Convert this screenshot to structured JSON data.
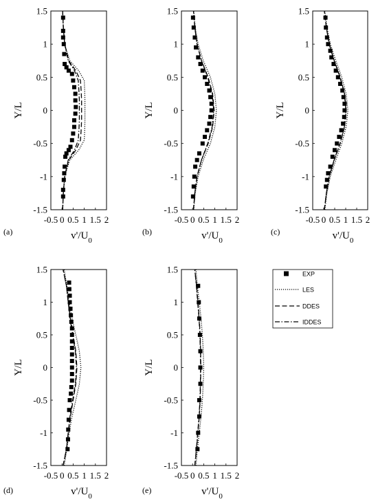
{
  "legend": {
    "entries": [
      {
        "label": "EXP",
        "style": "marker"
      },
      {
        "label": "LES",
        "style": "dotted"
      },
      {
        "label": "DDES",
        "style": "dashed"
      },
      {
        "label": "IDDES",
        "style": "dashdot"
      }
    ]
  },
  "chart_data": [
    {
      "type": "line",
      "panel_label": "(a)",
      "xlabel": "v'/U",
      "xlabel_sub": "0",
      "ylabel": "Y/L",
      "xlim": [
        -0.5,
        2
      ],
      "ylim": [
        -1.5,
        1.5
      ],
      "xticks": [
        "-0.5",
        "0",
        "0.5",
        "1",
        "1.5",
        "2"
      ],
      "yticks": [
        "1.5",
        "1",
        "0.5",
        "0",
        "-0.5",
        "-1",
        "-1.5"
      ],
      "y": [
        -1.5,
        -1.25,
        -1,
        -0.75,
        -0.6,
        -0.45,
        -0.3,
        -0.15,
        0,
        0.15,
        0.3,
        0.45,
        0.6,
        0.75,
        1,
        1.25,
        1.5
      ],
      "series": [
        {
          "name": "LES",
          "style": "dotted",
          "x": [
            0.03,
            0.06,
            0.12,
            0.35,
            0.75,
            1.0,
            1.02,
            1.03,
            1.03,
            1.03,
            1.02,
            1.0,
            0.75,
            0.35,
            0.12,
            0.06,
            0.03
          ]
        },
        {
          "name": "DDES",
          "style": "dashed",
          "x": [
            0.03,
            0.06,
            0.12,
            0.3,
            0.62,
            0.83,
            0.86,
            0.88,
            0.88,
            0.88,
            0.86,
            0.83,
            0.62,
            0.3,
            0.12,
            0.06,
            0.03
          ]
        },
        {
          "name": "IDDES",
          "style": "dashdot",
          "x": [
            0.03,
            0.06,
            0.12,
            0.28,
            0.56,
            0.73,
            0.76,
            0.78,
            0.78,
            0.78,
            0.76,
            0.73,
            0.56,
            0.28,
            0.12,
            0.06,
            0.03
          ]
        },
        {
          "name": "EXP",
          "style": "marker",
          "points": [
            [
              0.05,
              -1.3
            ],
            [
              0.05,
              -1.2
            ],
            [
              0.08,
              -1.05
            ],
            [
              0.1,
              -0.95
            ],
            [
              0.12,
              -0.85
            ],
            [
              0.15,
              -0.7
            ],
            [
              0.2,
              -0.65
            ],
            [
              0.3,
              -0.6
            ],
            [
              0.38,
              -0.55
            ],
            [
              0.45,
              -0.45
            ],
            [
              0.5,
              -0.35
            ],
            [
              0.55,
              -0.25
            ],
            [
              0.55,
              -0.15
            ],
            [
              0.6,
              -0.05
            ],
            [
              0.62,
              0.05
            ],
            [
              0.6,
              0.15
            ],
            [
              0.6,
              0.25
            ],
            [
              0.55,
              0.35
            ],
            [
              0.5,
              0.45
            ],
            [
              0.45,
              0.55
            ],
            [
              0.3,
              0.6
            ],
            [
              0.2,
              0.65
            ],
            [
              0.12,
              0.7
            ],
            [
              0.1,
              0.85
            ],
            [
              0.08,
              1.0
            ],
            [
              0.05,
              1.1
            ],
            [
              0.05,
              1.2
            ],
            [
              0.05,
              1.4
            ]
          ]
        }
      ]
    },
    {
      "type": "line",
      "panel_label": "(b)",
      "xlabel": "v'/U",
      "xlabel_sub": "0",
      "ylabel": "Y/L",
      "xlim": [
        -0.5,
        2
      ],
      "ylim": [
        -1.5,
        1.5
      ],
      "xticks": [
        "-0.5",
        "0",
        "0.5",
        "1",
        "1.5",
        "2"
      ],
      "yticks": [
        "1.5",
        "1",
        "0.5",
        "0",
        "-0.5",
        "-1",
        "-1.5"
      ],
      "y": [
        -1.5,
        -1.25,
        -1,
        -0.75,
        -0.5,
        -0.25,
        0,
        0.25,
        0.5,
        0.75,
        1,
        1.25,
        1.5
      ],
      "series": [
        {
          "name": "LES",
          "style": "dotted",
          "x": [
            0.05,
            0.12,
            0.25,
            0.48,
            0.8,
            1.0,
            1.07,
            1.0,
            0.8,
            0.48,
            0.25,
            0.12,
            0.05
          ]
        },
        {
          "name": "DDES",
          "style": "dashed",
          "x": [
            0.04,
            0.1,
            0.2,
            0.4,
            0.7,
            0.9,
            0.97,
            0.9,
            0.7,
            0.4,
            0.2,
            0.1,
            0.04
          ]
        },
        {
          "name": "IDDES",
          "style": "dashdot",
          "x": [
            0.04,
            0.1,
            0.2,
            0.4,
            0.68,
            0.88,
            0.95,
            0.88,
            0.68,
            0.4,
            0.2,
            0.1,
            0.04
          ]
        },
        {
          "name": "EXP",
          "style": "marker",
          "points": [
            [
              0.02,
              -1.3
            ],
            [
              0.05,
              -1.15
            ],
            [
              0.08,
              -1.0
            ],
            [
              0.12,
              -0.85
            ],
            [
              0.2,
              -0.75
            ],
            [
              0.3,
              -0.65
            ],
            [
              0.45,
              -0.5
            ],
            [
              0.55,
              -0.4
            ],
            [
              0.65,
              -0.3
            ],
            [
              0.75,
              -0.2
            ],
            [
              0.8,
              -0.1
            ],
            [
              0.85,
              0.0
            ],
            [
              0.85,
              0.1
            ],
            [
              0.8,
              0.2
            ],
            [
              0.75,
              0.3
            ],
            [
              0.65,
              0.4
            ],
            [
              0.55,
              0.5
            ],
            [
              0.45,
              0.6
            ],
            [
              0.35,
              0.7
            ],
            [
              0.25,
              0.8
            ],
            [
              0.15,
              0.95
            ],
            [
              0.1,
              1.1
            ],
            [
              0.05,
              1.25
            ],
            [
              0.02,
              1.4
            ]
          ]
        }
      ]
    },
    {
      "type": "line",
      "panel_label": "(c)",
      "xlabel": "v'/U",
      "xlabel_sub": "0",
      "ylabel": "Y/L",
      "xlim": [
        -0.5,
        2
      ],
      "ylim": [
        -1.5,
        1.5
      ],
      "xticks": [
        "-0.5",
        "0",
        "0.5",
        "1",
        "1.5",
        "2"
      ],
      "yticks": [
        "1.5",
        "1",
        "0.5",
        "0",
        "-0.5",
        "-1",
        "-1.5"
      ],
      "y": [
        -1.5,
        -1.25,
        -1,
        -0.75,
        -0.5,
        -0.25,
        0,
        0.25,
        0.5,
        0.75,
        1,
        1.25,
        1.5
      ],
      "series": [
        {
          "name": "LES",
          "style": "dotted",
          "x": [
            0.05,
            0.15,
            0.3,
            0.55,
            0.82,
            1.02,
            1.1,
            1.02,
            0.82,
            0.55,
            0.3,
            0.15,
            0.05
          ]
        },
        {
          "name": "DDES",
          "style": "dashed",
          "x": [
            0.03,
            0.12,
            0.25,
            0.48,
            0.75,
            0.95,
            1.02,
            0.95,
            0.75,
            0.48,
            0.25,
            0.12,
            0.03
          ]
        },
        {
          "name": "IDDES",
          "style": "dashdot",
          "x": [
            0.03,
            0.12,
            0.25,
            0.47,
            0.74,
            0.94,
            1.01,
            0.94,
            0.74,
            0.47,
            0.25,
            0.12,
            0.03
          ]
        },
        {
          "name": "EXP",
          "style": "marker",
          "points": [
            [
              0.1,
              -1.15
            ],
            [
              0.15,
              -1.05
            ],
            [
              0.2,
              -0.95
            ],
            [
              0.3,
              -0.85
            ],
            [
              0.4,
              -0.7
            ],
            [
              0.5,
              -0.6
            ],
            [
              0.6,
              -0.5
            ],
            [
              0.7,
              -0.4
            ],
            [
              0.8,
              -0.3
            ],
            [
              0.88,
              -0.2
            ],
            [
              0.93,
              -0.1
            ],
            [
              0.95,
              0.0
            ],
            [
              0.95,
              0.1
            ],
            [
              0.9,
              0.2
            ],
            [
              0.85,
              0.3
            ],
            [
              0.75,
              0.4
            ],
            [
              0.65,
              0.5
            ],
            [
              0.55,
              0.6
            ],
            [
              0.45,
              0.7
            ],
            [
              0.35,
              0.8
            ],
            [
              0.3,
              0.9
            ],
            [
              0.2,
              1.0
            ],
            [
              0.15,
              1.1
            ],
            [
              0.1,
              1.25
            ],
            [
              0.08,
              1.4
            ]
          ]
        }
      ]
    },
    {
      "type": "line",
      "panel_label": "(d)",
      "xlabel": "v'/U",
      "xlabel_sub": "0",
      "ylabel": "Y/L",
      "xlim": [
        -0.5,
        2
      ],
      "ylim": [
        -1.5,
        1.5
      ],
      "xticks": [
        "-0.5",
        "0",
        "0.5",
        "1",
        "1.5",
        "2"
      ],
      "yticks": [
        "1.5",
        "1",
        "0.5",
        "0",
        "-0.5",
        "-1",
        "-1.5"
      ],
      "y": [
        -1.5,
        -1.25,
        -1,
        -0.75,
        -0.5,
        -0.25,
        0,
        0.25,
        0.5,
        0.75,
        1,
        1.25,
        1.5
      ],
      "series": [
        {
          "name": "LES",
          "style": "dotted",
          "x": [
            0.1,
            0.22,
            0.32,
            0.45,
            0.62,
            0.78,
            0.85,
            0.78,
            0.62,
            0.45,
            0.32,
            0.22,
            0.1
          ]
        },
        {
          "name": "DDES",
          "style": "dashed",
          "x": [
            0.05,
            0.2,
            0.28,
            0.38,
            0.5,
            0.62,
            0.67,
            0.62,
            0.5,
            0.38,
            0.28,
            0.2,
            0.05
          ]
        },
        {
          "name": "IDDES",
          "style": "dashdot",
          "x": [
            0.05,
            0.2,
            0.28,
            0.36,
            0.48,
            0.6,
            0.65,
            0.6,
            0.48,
            0.36,
            0.28,
            0.2,
            0.05
          ]
        },
        {
          "name": "EXP",
          "style": "marker",
          "points": [
            [
              0.25,
              -1.25
            ],
            [
              0.27,
              -1.1
            ],
            [
              0.28,
              -0.95
            ],
            [
              0.3,
              -0.8
            ],
            [
              0.32,
              -0.65
            ],
            [
              0.35,
              -0.5
            ],
            [
              0.4,
              -0.4
            ],
            [
              0.42,
              -0.3
            ],
            [
              0.45,
              -0.2
            ],
            [
              0.45,
              -0.1
            ],
            [
              0.45,
              0.0
            ],
            [
              0.45,
              0.1
            ],
            [
              0.45,
              0.2
            ],
            [
              0.45,
              0.3
            ],
            [
              0.45,
              0.4
            ],
            [
              0.45,
              0.5
            ],
            [
              0.45,
              0.6
            ],
            [
              0.42,
              0.7
            ],
            [
              0.4,
              0.8
            ],
            [
              0.38,
              0.9
            ],
            [
              0.35,
              1.0
            ],
            [
              0.35,
              1.1
            ],
            [
              0.33,
              1.2
            ],
            [
              0.32,
              1.3
            ]
          ]
        }
      ]
    },
    {
      "type": "line",
      "panel_label": "(e)",
      "xlabel": "v'/U",
      "xlabel_sub": "0",
      "ylabel": "Y/L",
      "xlim": [
        -0.5,
        2
      ],
      "ylim": [
        -1.5,
        1.5
      ],
      "xticks": [
        "-0.5",
        "0",
        "0.5",
        "1",
        "1.5",
        "2"
      ],
      "yticks": [
        "1.5",
        "1",
        "0.5",
        "0",
        "-0.5",
        "-1",
        "-1.5"
      ],
      "y": [
        -1.5,
        -1.25,
        -1,
        -0.75,
        -0.5,
        -0.25,
        0,
        0.25,
        0.5,
        0.75,
        1,
        1.25,
        1.5
      ],
      "series": [
        {
          "name": "LES",
          "style": "dotted",
          "x": [
            0.15,
            0.22,
            0.3,
            0.38,
            0.44,
            0.48,
            0.5,
            0.48,
            0.44,
            0.38,
            0.3,
            0.22,
            0.15
          ]
        },
        {
          "name": "DDES",
          "style": "dashed",
          "x": [
            0.1,
            0.18,
            0.24,
            0.3,
            0.34,
            0.36,
            0.37,
            0.36,
            0.34,
            0.3,
            0.24,
            0.18,
            0.1
          ]
        },
        {
          "name": "IDDES",
          "style": "dashdot",
          "x": [
            0.1,
            0.17,
            0.23,
            0.29,
            0.33,
            0.35,
            0.36,
            0.35,
            0.33,
            0.29,
            0.23,
            0.17,
            0.1
          ]
        },
        {
          "name": "EXP",
          "style": "marker",
          "points": [
            [
              0.22,
              -1.25
            ],
            [
              0.25,
              -1.0
            ],
            [
              0.3,
              -0.75
            ],
            [
              0.3,
              -0.5
            ],
            [
              0.35,
              -0.25
            ],
            [
              0.35,
              0.0
            ],
            [
              0.35,
              0.25
            ],
            [
              0.33,
              0.5
            ],
            [
              0.3,
              0.75
            ],
            [
              0.28,
              1.0
            ],
            [
              0.25,
              1.25
            ]
          ]
        }
      ]
    }
  ]
}
